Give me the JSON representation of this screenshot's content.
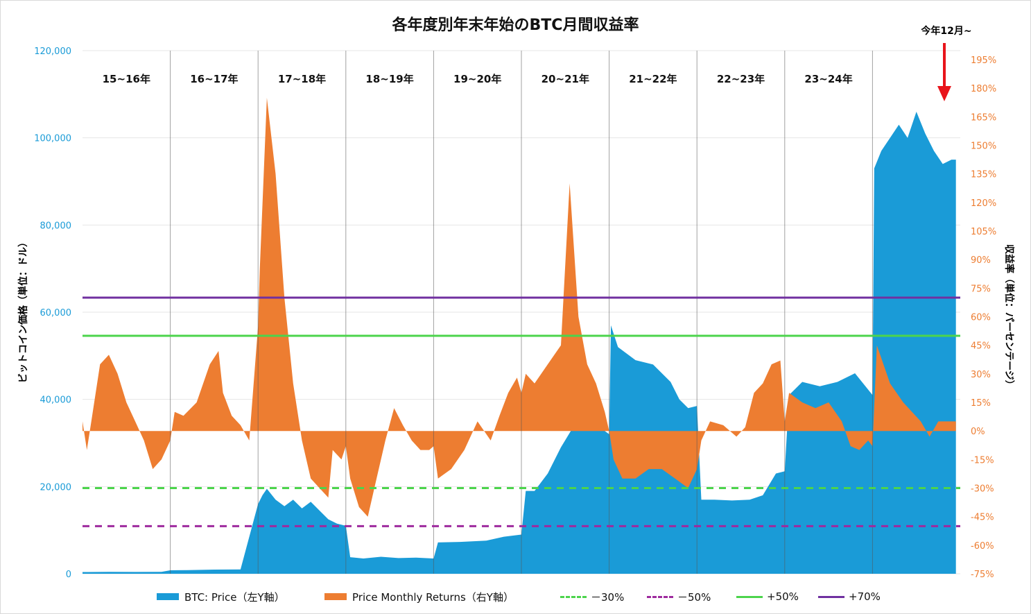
{
  "chart_data": {
    "type": "area",
    "title": "各年度別年末年始のBTC月間収益率",
    "annotation": "今年12月~",
    "left_axis": {
      "label": "ビットコイン価格（単位：ドル）",
      "ylim": [
        0,
        120000
      ],
      "ticks": [
        "0",
        "20,000",
        "40,000",
        "60,000",
        "80,000",
        "100,000",
        "120,000"
      ],
      "tick_values": [
        0,
        20000,
        40000,
        60000,
        80000,
        100000,
        120000
      ],
      "color": "#1A9BD7"
    },
    "right_axis": {
      "label": "収益率（単位：パーセンテージ）",
      "ylim": [
        -75,
        195
      ],
      "ticks": [
        "-75%",
        "-60%",
        "-45%",
        "-30%",
        "-15%",
        "0%",
        "15%",
        "30%",
        "45%",
        "60%",
        "75%",
        "90%",
        "105%",
        "120%",
        "135%",
        "150%",
        "165%",
        "180%",
        "195%"
      ],
      "tick_values": [
        -75,
        -60,
        -45,
        -30,
        -15,
        0,
        15,
        30,
        45,
        60,
        75,
        90,
        105,
        120,
        135,
        150,
        165,
        180,
        195
      ],
      "color": "#ED7D31"
    },
    "periods": [
      "15~16年",
      "16~17年",
      "17~18年",
      "18~19年",
      "19~20年",
      "20~21年",
      "21~22年",
      "22~23年",
      "23~24年",
      ""
    ],
    "series": [
      {
        "name": "BTC: Price（左Y軸）",
        "axis": "left",
        "color": "#1A9BD7",
        "x": [
          0.0,
          0.3,
          0.6,
          0.9,
          1.0,
          1.2,
          1.5,
          1.8,
          2.0,
          2.05,
          2.1,
          2.2,
          2.3,
          2.4,
          2.5,
          2.6,
          2.7,
          2.8,
          2.9,
          3.0,
          3.05,
          3.2,
          3.4,
          3.6,
          3.8,
          4.0,
          4.05,
          4.3,
          4.6,
          4.8,
          5.0,
          5.05,
          5.15,
          5.3,
          5.45,
          5.6,
          5.75,
          5.9,
          6.0,
          6.02,
          6.1,
          6.3,
          6.5,
          6.7,
          6.8,
          6.9,
          7.0,
          7.05,
          7.2,
          7.4,
          7.6,
          7.75,
          7.9,
          8.0,
          8.05,
          8.2,
          8.4,
          8.6,
          8.8,
          9.0,
          9.02,
          9.1,
          9.2,
          9.3,
          9.4,
          9.5,
          9.6,
          9.7,
          9.8,
          9.9,
          9.95
        ],
        "values": [
          400,
          430,
          420,
          450,
          800,
          850,
          950,
          1000,
          16000,
          18000,
          19500,
          17000,
          15500,
          17000,
          15000,
          16500,
          14500,
          12500,
          11500,
          11000,
          3800,
          3500,
          3900,
          3600,
          3700,
          3500,
          7200,
          7300,
          7600,
          8500,
          9000,
          19000,
          19000,
          23000,
          29000,
          34000,
          37000,
          33500,
          32000,
          57000,
          52000,
          49000,
          48000,
          44000,
          40000,
          38000,
          38500,
          17000,
          17000,
          16800,
          17000,
          18000,
          23000,
          23500,
          41000,
          44000,
          43000,
          44000,
          46000,
          41000,
          93000,
          97000,
          100000,
          103000,
          100000,
          106000,
          101000,
          97000,
          94000,
          95000,
          95000
        ]
      },
      {
        "name": "Price Monthly Returns（右Y軸）",
        "axis": "right",
        "color": "#ED7D31",
        "x": [
          0.0,
          0.05,
          0.1,
          0.2,
          0.3,
          0.4,
          0.5,
          0.6,
          0.7,
          0.8,
          0.9,
          1.0,
          1.05,
          1.15,
          1.3,
          1.45,
          1.55,
          1.6,
          1.7,
          1.8,
          1.9,
          2.0,
          2.02,
          2.1,
          2.2,
          2.3,
          2.4,
          2.5,
          2.6,
          2.7,
          2.8,
          2.85,
          2.95,
          3.0,
          3.05,
          3.15,
          3.25,
          3.35,
          3.45,
          3.55,
          3.65,
          3.75,
          3.85,
          3.95,
          4.0,
          4.05,
          4.2,
          4.35,
          4.5,
          4.65,
          4.75,
          4.85,
          4.95,
          5.0,
          5.05,
          5.15,
          5.3,
          5.45,
          5.55,
          5.65,
          5.75,
          5.85,
          5.95,
          6.0,
          6.05,
          6.15,
          6.3,
          6.45,
          6.6,
          6.75,
          6.9,
          6.95,
          7.0,
          7.05,
          7.15,
          7.3,
          7.45,
          7.55,
          7.65,
          7.75,
          7.85,
          7.95,
          8.0,
          8.05,
          8.2,
          8.35,
          8.5,
          8.65,
          8.75,
          8.85,
          8.95,
          9.0,
          9.05,
          9.2,
          9.35,
          9.45,
          9.55,
          9.65,
          9.75,
          9.85,
          9.95
        ],
        "values": [
          5,
          -10,
          5,
          35,
          40,
          30,
          15,
          5,
          -5,
          -20,
          -15,
          -5,
          10,
          8,
          15,
          35,
          42,
          20,
          8,
          3,
          -5,
          55,
          85,
          175,
          135,
          70,
          25,
          -5,
          -25,
          -30,
          -35,
          -10,
          -15,
          -8,
          -25,
          -40,
          -45,
          -25,
          -5,
          12,
          3,
          -5,
          -10,
          -10,
          -8,
          -25,
          -20,
          -10,
          5,
          -5,
          8,
          20,
          28,
          20,
          30,
          25,
          35,
          45,
          130,
          60,
          35,
          25,
          10,
          0,
          -15,
          -25,
          -25,
          -20,
          -20,
          -25,
          -30,
          -25,
          -20,
          -5,
          5,
          3,
          -3,
          2,
          20,
          25,
          35,
          37,
          5,
          20,
          15,
          12,
          15,
          5,
          -8,
          -10,
          -5,
          -8,
          45,
          25,
          15,
          10,
          5,
          -3,
          5,
          5,
          5
        ]
      }
    ],
    "reference_lines": [
      {
        "name": "－30%",
        "value": -30,
        "style": "dashed",
        "color": "#4CD44C"
      },
      {
        "name": "－50%",
        "value": -50,
        "style": "dashed",
        "color": "#9E2A9E"
      },
      {
        "name": "+50%",
        "value": 50,
        "style": "solid",
        "color": "#4CD44C"
      },
      {
        "name": "+70%",
        "value": 70,
        "style": "solid",
        "color": "#7030A0"
      }
    ],
    "grid": true
  }
}
